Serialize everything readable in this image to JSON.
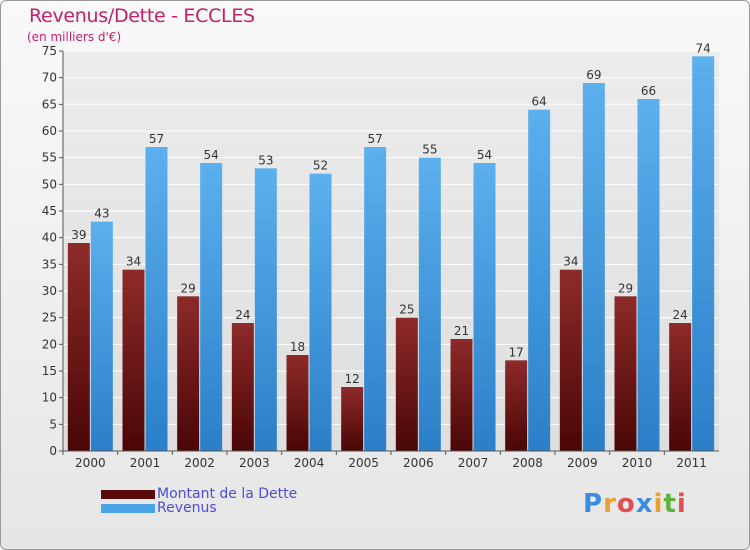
{
  "title": "Revenus/Dette - ECCLES",
  "subtitle": "(en milliers d'€)",
  "logo_text": "Proxiti",
  "colors": {
    "dette": "#7b1a1a",
    "revenus": "#4aa3e6",
    "title": "#c4206c",
    "legend_text": "#4d4dd6"
  },
  "legend": [
    {
      "label": "Montant de la Dette",
      "color": "#5a0a0a"
    },
    {
      "label": "Revenus",
      "color": "#4aa3e6"
    }
  ],
  "chart_data": {
    "type": "bar",
    "title": "Revenus/Dette - ECCLES",
    "subtitle": "(en milliers d'€)",
    "categories": [
      "2000",
      "2001",
      "2002",
      "2003",
      "2004",
      "2005",
      "2006",
      "2007",
      "2008",
      "2009",
      "2010",
      "2011"
    ],
    "series": [
      {
        "name": "Montant de la Dette",
        "values": [
          39,
          34,
          29,
          24,
          18,
          12,
          25,
          21,
          17,
          34,
          29,
          24
        ]
      },
      {
        "name": "Revenus",
        "values": [
          43,
          57,
          54,
          53,
          52,
          57,
          55,
          54,
          64,
          69,
          66,
          74
        ]
      }
    ],
    "ylim": [
      0,
      75
    ],
    "yticks": [
      0,
      5,
      10,
      15,
      20,
      25,
      30,
      35,
      40,
      45,
      50,
      55,
      60,
      65,
      70,
      75
    ],
    "grid": true,
    "legend_position": "bottom-left"
  }
}
